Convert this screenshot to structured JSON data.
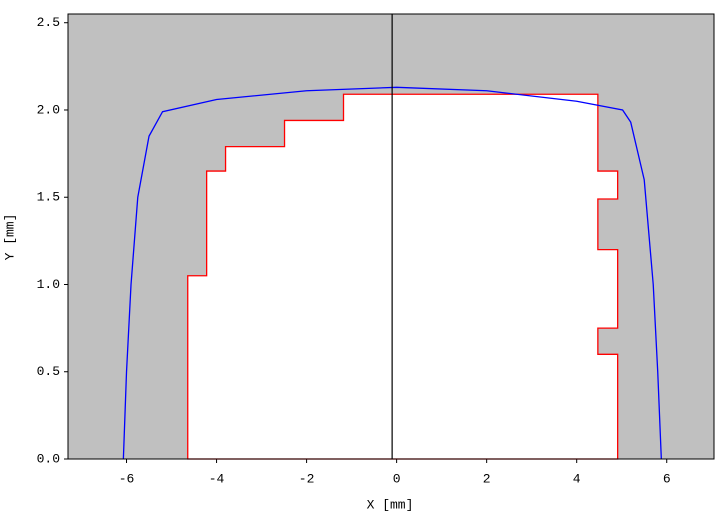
{
  "chart_data": {
    "type": "line",
    "xlabel": "X [mm]",
    "ylabel": "Y [mm]",
    "background": "#c0c0c0",
    "xlim": [
      -7.3,
      7.05
    ],
    "ylim": [
      0,
      2.55
    ],
    "xticks": [
      -6,
      -4,
      -2,
      0,
      2,
      4,
      6
    ],
    "yticks": [
      {
        "value": 0,
        "label": "0.0"
      },
      0.5,
      {
        "value": 1,
        "label": "1.0"
      },
      1.5,
      {
        "value": 2,
        "label": "2.0"
      },
      2.5
    ],
    "vline": {
      "x": -0.1,
      "color": "#000000"
    },
    "series": [
      {
        "color": "#ff0000",
        "fill": "#ffffff",
        "x": [
          -4.64,
          -4.64,
          -4.22,
          -4.22,
          -3.8,
          -3.8,
          -2.49,
          -2.49,
          -1.18,
          -1.18,
          4.47,
          4.47,
          4.91,
          4.91,
          4.47,
          4.47,
          4.91,
          4.91,
          4.47,
          4.47,
          4.91,
          4.91
        ],
        "values": [
          0,
          1.05,
          1.05,
          1.65,
          1.65,
          1.79,
          1.79,
          1.94,
          1.94,
          2.09,
          2.09,
          1.65,
          1.65,
          1.49,
          1.49,
          1.2,
          1.2,
          0.75,
          0.75,
          0.6,
          0.6,
          0
        ]
      },
      {
        "color": "#0000ff",
        "x": [
          -6.07,
          -6.0,
          -5.9,
          -5.75,
          -5.5,
          -5.2,
          -4,
          -2,
          0,
          2,
          4,
          5.02,
          5.2,
          5.5,
          5.7,
          5.8,
          5.88
        ],
        "values": [
          0,
          0.5,
          1.0,
          1.5,
          1.85,
          1.99,
          2.06,
          2.11,
          2.13,
          2.11,
          2.05,
          2.0,
          1.93,
          1.6,
          1.0,
          0.5,
          0
        ]
      }
    ]
  }
}
